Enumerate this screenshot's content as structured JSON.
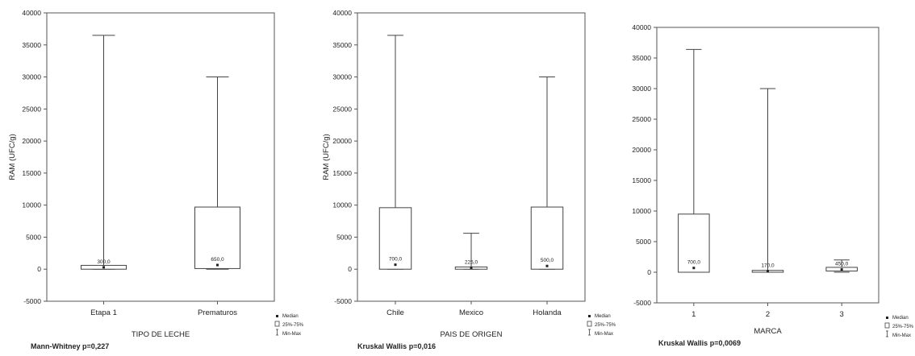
{
  "chart_data": [
    {
      "type": "box",
      "title": "",
      "xlabel": "TIPO DE LECHE",
      "ylabel": "RAM (UFC/g)",
      "ylim": [
        -5000,
        40000
      ],
      "yticks": [
        -5000,
        0,
        5000,
        10000,
        15000,
        20000,
        25000,
        30000,
        35000,
        40000
      ],
      "categories": [
        "Etapa 1",
        "Prematuros"
      ],
      "boxes": [
        {
          "min": 0,
          "q1": 0,
          "median": 300,
          "q3": 600,
          "max": 36500,
          "label": "300,0"
        },
        {
          "min": 0,
          "q1": 100,
          "median": 650,
          "q3": 9700,
          "max": 30000,
          "label": "650,0"
        }
      ],
      "footnote": "Mann-Whitney p=0,227",
      "legend": {
        "median": "Median",
        "box": "25%-75%",
        "range": "Min-Max",
        "position": "bottom-right"
      },
      "grid": false
    },
    {
      "type": "box",
      "title": "",
      "xlabel": "PAIS DE ORIGEN",
      "ylabel": "RAM (UFC/g)",
      "ylim": [
        -5000,
        40000
      ],
      "yticks": [
        -5000,
        0,
        5000,
        10000,
        15000,
        20000,
        25000,
        30000,
        35000,
        40000
      ],
      "categories": [
        "Chile",
        "Mexico",
        "Holanda"
      ],
      "boxes": [
        {
          "min": 0,
          "q1": 0,
          "median": 700,
          "q3": 9600,
          "max": 36500,
          "label": "700,0"
        },
        {
          "min": 0,
          "q1": 0,
          "median": 225,
          "q3": 350,
          "max": 5600,
          "label": "225,0"
        },
        {
          "min": 0,
          "q1": 0,
          "median": 500,
          "q3": 9700,
          "max": 30000,
          "label": "500,0"
        }
      ],
      "footnote": "Kruskal Wallis p=0,016",
      "legend": {
        "median": "Median",
        "box": "25%-75%",
        "range": "Min-Max",
        "position": "bottom-right"
      },
      "grid": false
    },
    {
      "type": "box",
      "title": "",
      "xlabel": "MARCA",
      "ylabel": "",
      "ylim": [
        -5000,
        40000
      ],
      "yticks": [
        -5000,
        0,
        5000,
        10000,
        15000,
        20000,
        25000,
        30000,
        35000,
        40000
      ],
      "categories": [
        "1",
        "2",
        "3"
      ],
      "boxes": [
        {
          "min": 0,
          "q1": 0,
          "median": 700,
          "q3": 9500,
          "max": 36400,
          "label": "700,0"
        },
        {
          "min": 0,
          "q1": 0,
          "median": 170,
          "q3": 300,
          "max": 30000,
          "label": "170,0"
        },
        {
          "min": 0,
          "q1": 200,
          "median": 450,
          "q3": 800,
          "max": 2000,
          "label": "450,0"
        }
      ],
      "footnote": "Kruskal Wallis p=0,0069",
      "legend": {
        "median": "Median",
        "box": "25%-75%",
        "range": "Min-Max",
        "position": "bottom-right"
      },
      "grid": false
    }
  ]
}
